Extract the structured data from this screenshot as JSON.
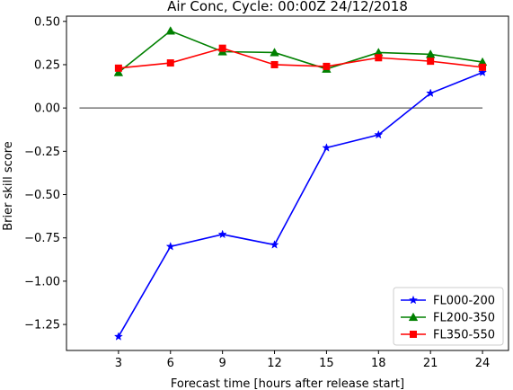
{
  "chart_data": {
    "type": "line",
    "title": "Air Conc, Cycle: 00:00Z 24/12/2018",
    "xlabel": "Forecast time [hours after release start]",
    "ylabel": "Brier skill score",
    "x": [
      3,
      6,
      9,
      12,
      15,
      18,
      21,
      24
    ],
    "xlim": [
      0,
      25.5
    ],
    "ylim": [
      -1.4,
      0.53
    ],
    "x_ticks": [
      "3",
      "6",
      "9",
      "12",
      "15",
      "18",
      "21",
      "24"
    ],
    "y_ticks": [
      0.5,
      0.25,
      0.0,
      -0.25,
      -0.5,
      -0.75,
      -1.0,
      -1.25
    ],
    "y_tick_labels": [
      "0.50",
      "0.25",
      "0.00",
      "−0.25",
      "−0.50",
      "−0.75",
      "−1.00",
      "−1.25"
    ],
    "grid": false,
    "legend_position": "lower-right",
    "reference_line": {
      "y": 0.0,
      "x_range": [
        0.75,
        24
      ],
      "color": "#808080"
    },
    "series": [
      {
        "name": "FL000-200",
        "color": "#0000ff",
        "marker": "star",
        "values": [
          -1.32,
          -0.8,
          -0.73,
          -0.79,
          -0.23,
          -0.155,
          0.085,
          0.205
        ]
      },
      {
        "name": "FL200-350",
        "color": "#008000",
        "marker": "triangle",
        "values": [
          0.205,
          0.445,
          0.325,
          0.32,
          0.225,
          0.32,
          0.31,
          0.265
        ]
      },
      {
        "name": "FL350-550",
        "color": "#ff0000",
        "marker": "square",
        "values": [
          0.23,
          0.26,
          0.345,
          0.25,
          0.24,
          0.29,
          0.27,
          0.235
        ]
      }
    ]
  }
}
